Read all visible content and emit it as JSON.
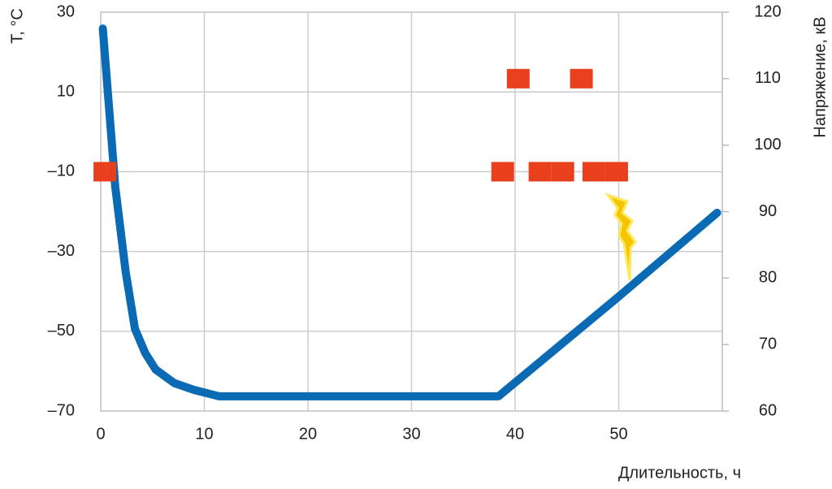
{
  "chart_data": {
    "type": "line",
    "x_label": "Длительность, ч",
    "y_label": "T, °C",
    "y2_label": "Напряжение, кВ",
    "xlim": [
      0,
      60
    ],
    "xticks": [
      0,
      10,
      20,
      30,
      40,
      50
    ],
    "ylim": [
      -70,
      30
    ],
    "yticks": [
      {
        "value": -70,
        "label": "–70"
      },
      {
        "value": -50,
        "label": "–50"
      },
      {
        "value": -30,
        "label": "–30"
      },
      {
        "value": -10,
        "label": "–10"
      },
      10,
      30
    ],
    "y2lim": [
      60,
      120
    ],
    "y2ticks": [
      60,
      70,
      80,
      90,
      100,
      110,
      120
    ],
    "grid": true,
    "series": [
      {
        "color": "#0a6ab4",
        "x": [
          0.2,
          1.4,
          2.4,
          3.3,
          4.3,
          5.3,
          7.1,
          9,
          11.4,
          38.4,
          50,
          59.5
        ],
        "values": [
          25.9,
          -13.8,
          -35,
          -49.4,
          -55.5,
          -59.6,
          -63,
          -64.7,
          -66.3,
          -66.3,
          -41.3,
          -20.3
        ]
      },
      {
        "color": "#e8401c",
        "axis": "y2",
        "marker": "square",
        "x": [
          0.4,
          38.8,
          42.4,
          44.6,
          47.6,
          49.8,
          40.3,
          46.4
        ],
        "values": [
          96,
          96,
          96,
          96,
          96,
          96,
          110,
          110
        ]
      }
    ]
  }
}
